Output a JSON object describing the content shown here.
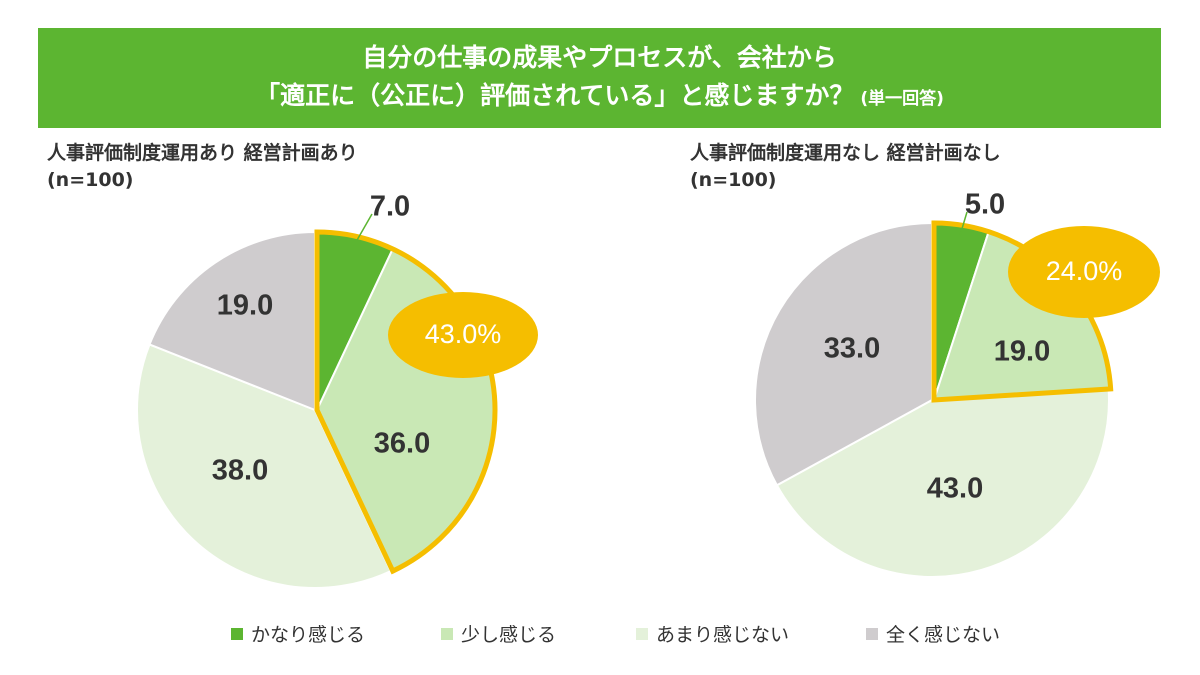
{
  "title": {
    "line1": "自分の仕事の成果やプロセスが、会社から",
    "line2": "「適正に（公正に）評価されている」と感じますか？",
    "note": "(単一回答)"
  },
  "colors": {
    "banner": "#5cb531",
    "highlight": "#f5be00",
    "series": [
      "#5cb531",
      "#c9e8b5",
      "#e4f1da",
      "#cfccce"
    ]
  },
  "legend": [
    "かなり感じる",
    "少し感じる",
    "あまり感じない",
    "全く感じない"
  ],
  "chart_data": [
    {
      "type": "pie",
      "title": "人事評価制度運用あり 経営計画あり",
      "subtitle": "(n=100)",
      "categories": [
        "かなり感じる",
        "少し感じる",
        "あまり感じない",
        "全く感じない"
      ],
      "values": [
        7.0,
        36.0,
        38.0,
        19.0
      ],
      "labels": [
        "7.0",
        "36.0",
        "38.0",
        "19.0"
      ],
      "highlight_total": "43.0%"
    },
    {
      "type": "pie",
      "title": "人事評価制度運用なし 経営計画なし",
      "subtitle": "(n=100)",
      "categories": [
        "かなり感じる",
        "少し感じる",
        "あまり感じない",
        "全く感じない"
      ],
      "values": [
        5.0,
        19.0,
        43.0,
        33.0
      ],
      "labels": [
        "5.0",
        "19.0",
        "43.0",
        "33.0"
      ],
      "highlight_total": "24.0%"
    }
  ]
}
